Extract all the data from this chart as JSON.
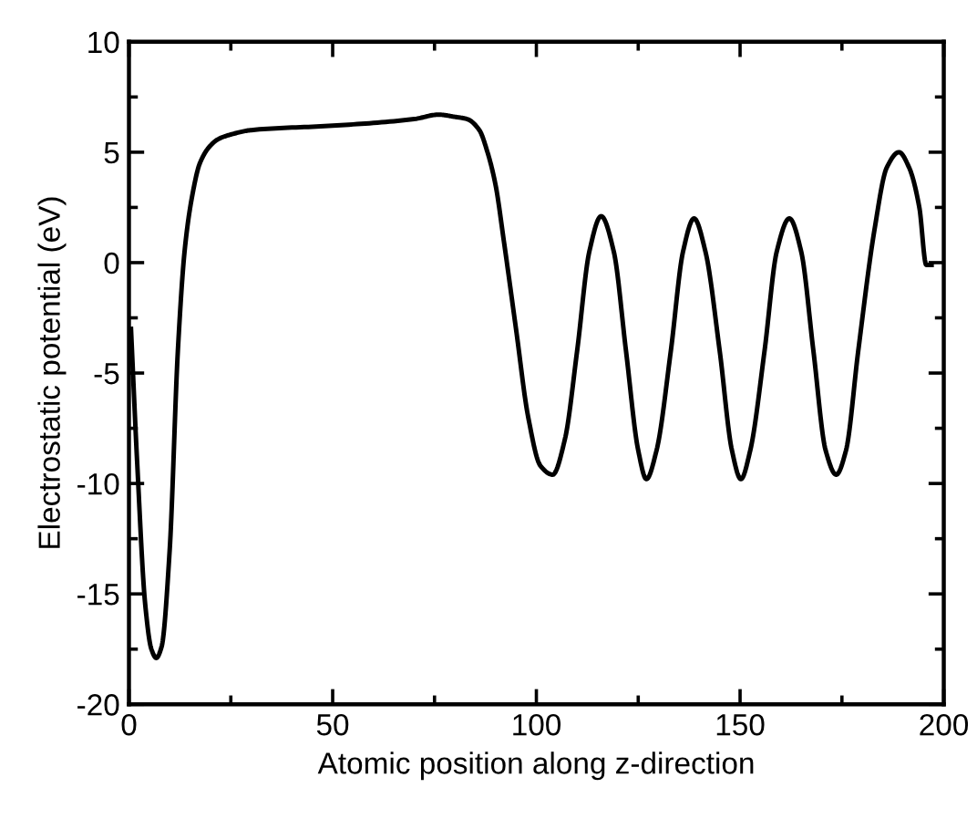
{
  "chart_data": {
    "type": "line",
    "xlabel": "Atomic position along z-direction",
    "ylabel": "Electrostatic potential (eV)",
    "xlim": [
      0,
      200
    ],
    "ylim": [
      -20,
      10
    ],
    "xticks": [
      0,
      50,
      100,
      150,
      200
    ],
    "yticks": [
      -20,
      -15,
      -10,
      -5,
      0,
      5,
      10
    ],
    "grid": false,
    "marker": "none",
    "line_style": "solid",
    "series": [
      {
        "color": "#000000",
        "x": [
          0.5,
          2,
          4,
          5.5,
          6.7,
          8,
          10,
          12,
          13.7,
          15.5,
          17.4,
          20,
          22,
          25,
          30,
          50,
          70,
          76,
          80,
          83,
          86,
          88,
          90,
          92,
          95,
          98,
          101,
          104,
          107,
          110,
          113,
          115.9,
          119,
          122,
          125,
          127,
          129.5,
          133,
          136,
          138.7,
          141.5,
          145,
          148,
          150.2,
          152.5,
          156,
          159,
          162.1,
          165,
          168,
          171,
          173.6,
          176,
          179,
          183,
          186,
          189,
          191.5,
          194,
          195.7,
          197
        ],
        "values": [
          -3,
          -9,
          -15.5,
          -17.5,
          -17.9,
          -17.4,
          -13,
          -4,
          0.6,
          3,
          4.5,
          5.3,
          5.6,
          5.8,
          6.0,
          6.2,
          6.5,
          6.7,
          6.6,
          6.5,
          6.0,
          5.0,
          3.5,
          1,
          -3,
          -7,
          -9.2,
          -9.6,
          -8,
          -4,
          0.5,
          2.1,
          0.5,
          -4,
          -8.5,
          -9.8,
          -8.5,
          -4,
          0.5,
          2.0,
          0.5,
          -4,
          -8.5,
          -9.8,
          -8.5,
          -4,
          0.5,
          2.0,
          0.5,
          -4,
          -8.5,
          -9.6,
          -8.5,
          -4,
          1.5,
          4.3,
          5.0,
          4.3,
          2.5,
          -0.1,
          -0.1
        ]
      }
    ]
  }
}
